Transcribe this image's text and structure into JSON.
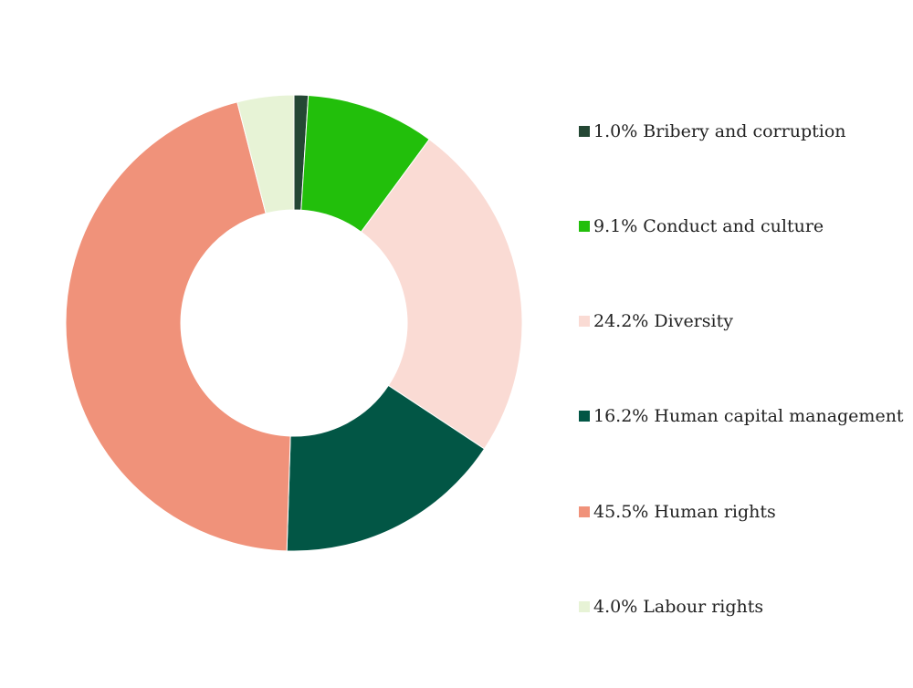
{
  "chart_data": {
    "type": "pie",
    "donut": true,
    "start_angle_deg": 0,
    "direction": "clockwise",
    "legend_position": "right",
    "slices": [
      {
        "label": "Bribery and corruption",
        "value": 1.0,
        "display": "1.0%",
        "color": "#244734"
      },
      {
        "label": "Conduct and culture",
        "value": 9.1,
        "display": "9.1%",
        "color": "#22bf0b"
      },
      {
        "label": "Diversity",
        "value": 24.2,
        "display": "24.2%",
        "color": "#fadbd4"
      },
      {
        "label": "Human capital management",
        "value": 16.2,
        "display": "16.2%",
        "color": "#025645"
      },
      {
        "label": "Human rights",
        "value": 45.5,
        "display": "45.5%",
        "color": "#f0927a"
      },
      {
        "label": "Labour rights",
        "value": 4.0,
        "display": "4.0%",
        "color": "#e7f3d6"
      }
    ]
  }
}
